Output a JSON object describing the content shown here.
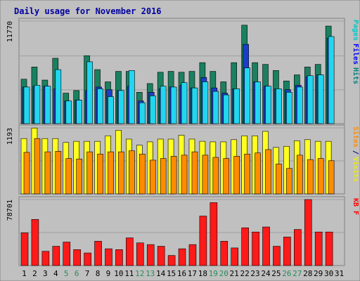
{
  "chart_data": {
    "type": "bar",
    "title": "Daily usage for November 2016",
    "days": [
      "1",
      "2",
      "3",
      "4",
      "5",
      "6",
      "7",
      "8",
      "9",
      "10",
      "11",
      "12",
      "13",
      "14",
      "15",
      "16",
      "17",
      "18",
      "19",
      "20",
      "21",
      "22",
      "23",
      "24",
      "25",
      "26",
      "27",
      "28",
      "29",
      "30",
      "31"
    ],
    "weekend_days": [
      "5",
      "6",
      "12",
      "13",
      "19",
      "20",
      "26",
      "27"
    ],
    "panels": [
      {
        "name": "hits-files-pages",
        "ymax_label": "11770",
        "ymax": 11770,
        "legend": [
          "Pages",
          "Files",
          "Hits"
        ],
        "legend_colors": [
          "#00c8c8",
          "#0000ff",
          "#008080"
        ],
        "series": [
          {
            "name": "Hits",
            "color": "#1a8060",
            "values": [
              5100,
              6500,
              5000,
              7500,
              3500,
              3800,
              7800,
              6200,
              4800,
              6000,
              6000,
              3600,
              4600,
              5900,
              6000,
              5900,
              6000,
              7000,
              6000,
              4800,
              7000,
              11300,
              7000,
              6800,
              6100,
              4900,
              5600,
              6500,
              6800,
              11200,
              null
            ]
          },
          {
            "name": "Files",
            "color": "#1a3ec8",
            "values": [
              4200,
              4300,
              4300,
              4000,
              2600,
              2700,
              3800,
              4200,
              3900,
              3800,
              4300,
              2600,
              3600,
              4000,
              4200,
              4400,
              4100,
              5300,
              4100,
              3500,
              4000,
              9100,
              4800,
              4300,
              4000,
              3900,
              4400,
              5400,
              5600,
              9800,
              null
            ]
          },
          {
            "name": "Pages",
            "color": "#22d6f0",
            "values": [
              4200,
              4400,
              4300,
              6200,
              2600,
              2700,
              7100,
              4000,
              3100,
              3800,
              6100,
              2400,
              3200,
              4300,
              4200,
              4700,
              4100,
              4800,
              3700,
              3300,
              4000,
              6400,
              4800,
              4300,
              4000,
              3600,
              4200,
              5500,
              5600,
              10000,
              null
            ]
          }
        ]
      },
      {
        "name": "visits-sites",
        "ymax_label": "1193",
        "ymax": 1193,
        "legend": [
          "Sites",
          "/",
          "Visits"
        ],
        "legend_colors": [
          "#ff8c00",
          "#000080",
          "#e8e820"
        ],
        "series": [
          {
            "name": "Visits",
            "color": "#ffff20",
            "values": [
              1000,
              1190,
              1000,
              1000,
              930,
              950,
              950,
              950,
              1050,
              1150,
              990,
              880,
              940,
              990,
              990,
              1060,
              990,
              950,
              940,
              940,
              980,
              1050,
              1050,
              1130,
              840,
              860,
              960,
              980,
              950,
              950,
              null
            ]
          },
          {
            "name": "Sites",
            "color": "#ff8c00",
            "values": [
              750,
              1000,
              760,
              770,
              640,
              630,
              760,
              720,
              760,
              760,
              780,
              720,
              610,
              640,
              680,
              700,
              760,
              700,
              660,
              640,
              680,
              720,
              740,
              800,
              540,
              460,
              700,
              620,
              640,
              600,
              null
            ]
          }
        ]
      },
      {
        "name": "kbytes",
        "ymax_label": "78701",
        "ymax": 78701,
        "legend": [
          "KB F"
        ],
        "legend_colors": [
          "#ff0000"
        ],
        "series": [
          {
            "name": "KB F",
            "color": "#ff1a1a",
            "values": [
              39000,
              55000,
              17000,
              23000,
              28000,
              19000,
              15000,
              29000,
              20000,
              19000,
              33000,
              27000,
              25000,
              23000,
              12000,
              20000,
              25000,
              59000,
              75000,
              29000,
              21000,
              45000,
              40000,
              46000,
              23000,
              34000,
              43000,
              78701,
              40000,
              40000,
              null
            ]
          }
        ]
      }
    ]
  }
}
